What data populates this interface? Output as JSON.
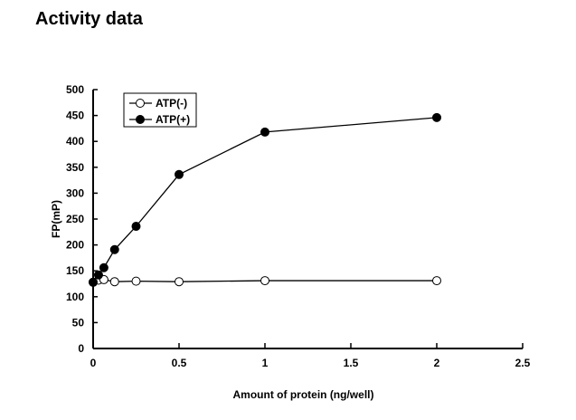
{
  "page_title": "Activity data",
  "chart_data": {
    "type": "line",
    "title": "Activity data",
    "xlabel": "Amount of protein (ng/well)",
    "ylabel": "FP(mP)",
    "xlim": [
      0,
      2.5
    ],
    "ylim": [
      0,
      500
    ],
    "xticks": [
      0,
      0.5,
      1,
      1.5,
      2,
      2.5
    ],
    "xtick_labels": [
      "0",
      "0.5",
      "1",
      "1.5",
      "2",
      "2.5"
    ],
    "yticks": [
      0,
      50,
      100,
      150,
      200,
      250,
      300,
      350,
      400,
      450,
      500
    ],
    "legend_position": "top-left",
    "grid": false,
    "series": [
      {
        "name": "ATP(-)",
        "marker": "open-circle",
        "x": [
          0,
          0.03125,
          0.0625,
          0.125,
          0.25,
          0.5,
          1,
          2
        ],
        "y": [
          128,
          132,
          133,
          129,
          130,
          129,
          131,
          131
        ]
      },
      {
        "name": "ATP(+)",
        "marker": "filled-circle",
        "x": [
          0,
          0.03125,
          0.0625,
          0.125,
          0.25,
          0.5,
          1,
          2
        ],
        "y": [
          128,
          142,
          156,
          191,
          236,
          336,
          418,
          446
        ]
      }
    ]
  }
}
